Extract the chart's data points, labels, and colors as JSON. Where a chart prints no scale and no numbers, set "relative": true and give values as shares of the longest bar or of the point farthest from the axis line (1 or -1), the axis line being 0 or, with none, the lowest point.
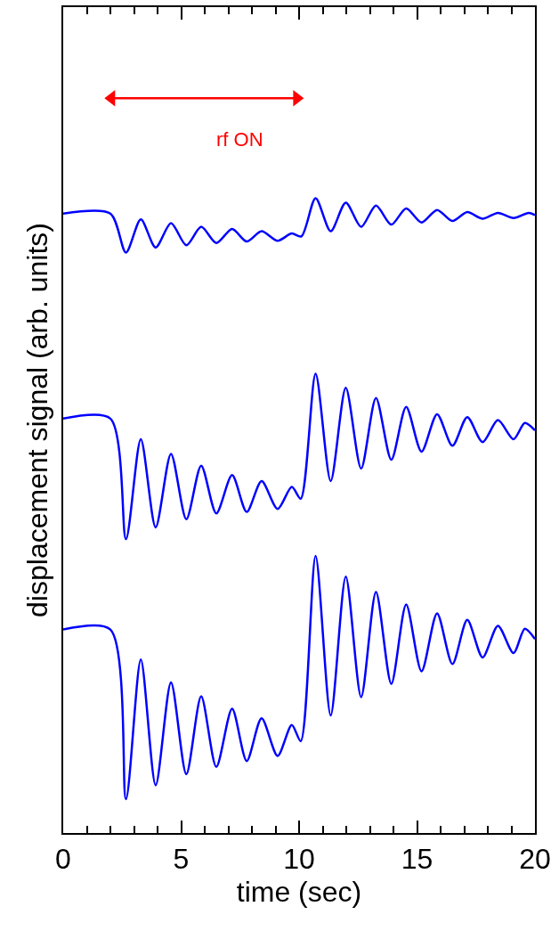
{
  "chart_data": {
    "type": "line",
    "relative": true,
    "xlabel": "time (sec)",
    "ylabel": "displacement signal (arb. units)",
    "xlim": [
      0,
      20
    ],
    "xticks": [
      0,
      5,
      10,
      15,
      20
    ],
    "marker": "none",
    "line_style": "solid",
    "annotations": [
      "rf ON"
    ],
    "series": [
      {
        "color": "#ff0000",
        "x": [
          2.05,
          9.9
        ],
        "values": [
          1,
          1
        ],
        "marker": "triangle"
      },
      {
        "color": "#0000ff",
        "x": [
          0,
          2.0,
          2.66,
          3.29,
          3.92,
          4.57,
          5.22,
          5.85,
          6.49,
          7.16,
          7.78,
          8.41,
          9.09,
          9.69,
          10.1,
          10.7,
          11.34,
          11.98,
          12.63,
          13.26,
          13.91,
          14.54,
          15.19,
          15.85,
          16.5,
          17.13,
          17.78,
          18.43,
          19.09,
          19.73,
          20.0
        ],
        "values": [
          0.843,
          0.843,
          0.79,
          0.835,
          0.797,
          0.83,
          0.8,
          0.825,
          0.803,
          0.822,
          0.805,
          0.819,
          0.806,
          0.816,
          0.812,
          0.864,
          0.819,
          0.858,
          0.825,
          0.854,
          0.828,
          0.85,
          0.831,
          0.848,
          0.833,
          0.845,
          0.836,
          0.844,
          0.837,
          0.844,
          0.841
        ]
      },
      {
        "color": "#0000ff",
        "x": [
          0,
          2.0,
          2.66,
          3.29,
          3.92,
          4.57,
          5.22,
          5.85,
          6.49,
          7.16,
          7.78,
          8.41,
          9.09,
          9.69,
          10.07,
          10.7,
          11.34,
          11.98,
          12.63,
          13.26,
          13.91,
          14.54,
          15.19,
          15.85,
          16.5,
          17.13,
          17.78,
          18.43,
          19.09,
          19.57,
          20.0
        ],
        "values": [
          0.564,
          0.564,
          0.4,
          0.536,
          0.416,
          0.516,
          0.427,
          0.5,
          0.435,
          0.487,
          0.437,
          0.479,
          0.441,
          0.471,
          0.455,
          0.625,
          0.479,
          0.606,
          0.496,
          0.592,
          0.508,
          0.58,
          0.519,
          0.57,
          0.527,
          0.566,
          0.532,
          0.562,
          0.536,
          0.558,
          0.548
        ]
      },
      {
        "color": "#0000ff",
        "x": [
          0,
          2.0,
          2.66,
          3.29,
          3.92,
          4.57,
          5.22,
          5.85,
          6.49,
          7.16,
          7.78,
          8.41,
          9.09,
          9.69,
          10.07,
          10.7,
          11.34,
          11.98,
          12.63,
          13.26,
          13.91,
          14.54,
          15.19,
          15.85,
          16.5,
          17.13,
          17.78,
          18.43,
          19.09,
          19.57,
          20.0
        ],
        "values": [
          0.277,
          0.277,
          0.046,
          0.236,
          0.065,
          0.205,
          0.08,
          0.186,
          0.09,
          0.169,
          0.098,
          0.156,
          0.105,
          0.147,
          0.125,
          0.377,
          0.16,
          0.349,
          0.185,
          0.328,
          0.203,
          0.311,
          0.22,
          0.299,
          0.23,
          0.29,
          0.239,
          0.282,
          0.245,
          0.278,
          0.264
        ]
      }
    ]
  }
}
